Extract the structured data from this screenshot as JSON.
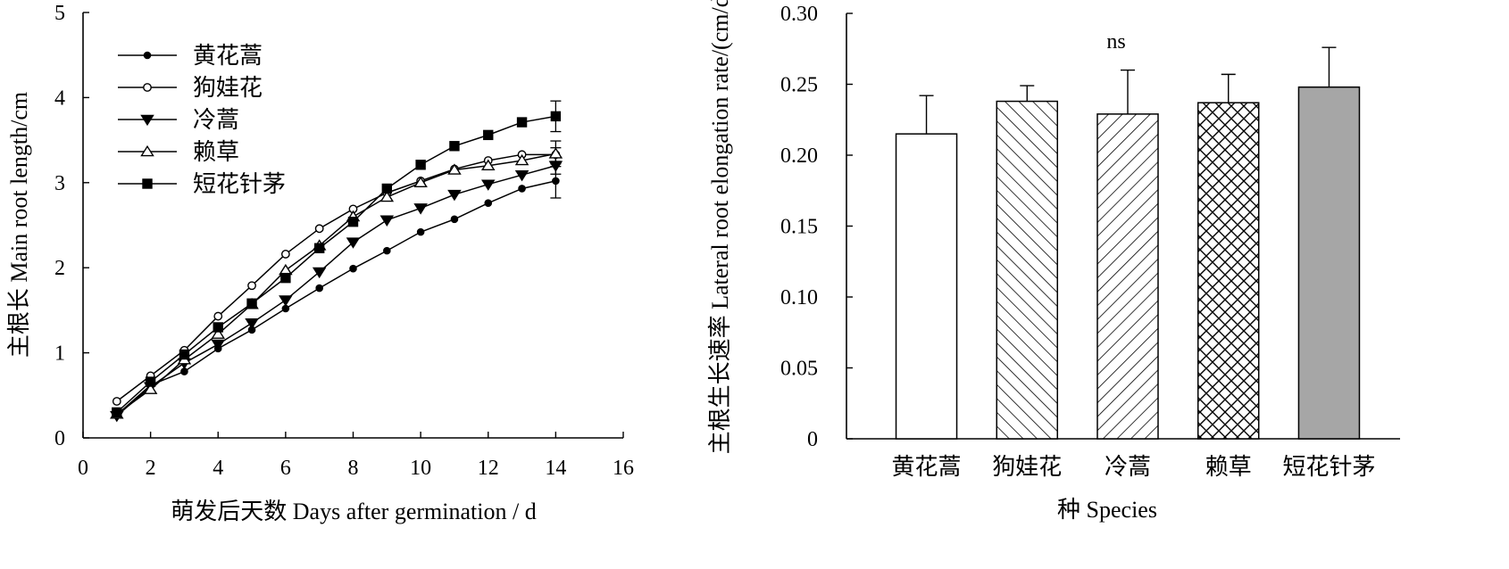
{
  "chart_data": [
    {
      "type": "line",
      "xlabel": "萌发后天数 Days after germination / d",
      "ylabel": "主根长 Main root length/cm",
      "xlim": [
        0,
        16
      ],
      "ylim": [
        0,
        5
      ],
      "xticks": [
        0,
        2,
        4,
        6,
        8,
        10,
        12,
        14,
        16
      ],
      "yticks": [
        0,
        1,
        2,
        3,
        4,
        5
      ],
      "legend_position": "top-left",
      "x": [
        1,
        2,
        3,
        4,
        5,
        6,
        7,
        8,
        9,
        10,
        11,
        12,
        13,
        14
      ],
      "series": [
        {
          "name": "黄花蒿",
          "marker": "circle-filled",
          "values": [
            0.27,
            0.62,
            0.78,
            1.05,
            1.27,
            1.52,
            1.76,
            1.99,
            2.2,
            2.42,
            2.57,
            2.76,
            2.93,
            3.02
          ],
          "error_last": 0.2
        },
        {
          "name": "狗娃花",
          "marker": "circle-open",
          "values": [
            0.43,
            0.73,
            1.03,
            1.43,
            1.79,
            2.16,
            2.46,
            2.69,
            2.88,
            3.02,
            3.16,
            3.26,
            3.33,
            3.33
          ],
          "error_last": 0.08
        },
        {
          "name": "冷蒿",
          "marker": "triangle-down-filled",
          "values": [
            0.26,
            0.6,
            0.88,
            1.1,
            1.35,
            1.62,
            1.95,
            2.3,
            2.56,
            2.7,
            2.86,
            2.98,
            3.09,
            3.2
          ],
          "error_last": 0.1
        },
        {
          "name": "赖草",
          "marker": "triangle-up-open",
          "values": [
            0.28,
            0.57,
            0.92,
            1.22,
            1.57,
            1.97,
            2.26,
            2.6,
            2.83,
            3.0,
            3.15,
            3.2,
            3.26,
            3.34
          ],
          "error_last": 0.15
        },
        {
          "name": "短花针茅",
          "marker": "square-filled",
          "values": [
            0.3,
            0.66,
            0.98,
            1.3,
            1.58,
            1.88,
            2.23,
            2.54,
            2.93,
            3.21,
            3.43,
            3.56,
            3.71,
            3.78
          ],
          "error_last": 0.18
        }
      ]
    },
    {
      "type": "bar",
      "xlabel": "种 Species",
      "ylabel": "主根生长速率 Lateral root elongation rate/(cm/d)",
      "ylim": [
        0,
        0.3
      ],
      "yticks": [
        "0",
        "0.05",
        "0.10",
        "0.15",
        "0.20",
        "0.25",
        "0.30"
      ],
      "categories": [
        "黄花蒿",
        "狗娃花",
        "冷蒿",
        "赖草",
        "短花针茅"
      ],
      "values": [
        0.215,
        0.238,
        0.229,
        0.237,
        0.248
      ],
      "errors": [
        0.027,
        0.011,
        0.031,
        0.02,
        0.028
      ],
      "fills": [
        "white",
        "hatch-forward",
        "hatch-backward",
        "crosshatch",
        "#a6a6a6"
      ],
      "annotation": "ns"
    }
  ]
}
